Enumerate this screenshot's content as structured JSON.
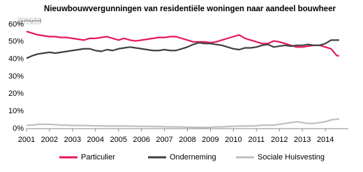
{
  "chart_data": {
    "type": "line",
    "title": "Nieuwbouwvergunningen van residentiële woningen naar aandeel bouwheer",
    "tooltip": "Grafiekgebied",
    "x": [
      2001,
      2001.25,
      2001.5,
      2001.75,
      2002,
      2002.25,
      2002.5,
      2002.75,
      2003,
      2003.25,
      2003.5,
      2003.75,
      2004,
      2004.25,
      2004.5,
      2004.75,
      2005,
      2005.25,
      2005.5,
      2005.75,
      2006,
      2006.25,
      2006.5,
      2006.75,
      2007,
      2007.25,
      2007.5,
      2007.75,
      2008,
      2008.25,
      2008.5,
      2008.75,
      2009,
      2009.25,
      2009.5,
      2009.75,
      2010,
      2010.25,
      2010.5,
      2010.75,
      2011,
      2011.25,
      2011.5,
      2011.75,
      2012,
      2012.25,
      2012.5,
      2012.75,
      2013,
      2013.25,
      2013.5,
      2013.75,
      2014,
      2014.25,
      2014.5,
      2014.6
    ],
    "series": [
      {
        "name": "Particulier",
        "color": "#e5175f",
        "values": [
          56,
          55,
          54,
          53.5,
          53,
          53,
          52.5,
          52.5,
          52,
          51.5,
          51,
          52,
          52,
          52.5,
          53,
          52,
          51,
          52,
          51,
          50.5,
          51,
          51.5,
          52,
          52.5,
          52.5,
          53,
          53,
          52,
          51,
          50,
          50,
          50,
          49.5,
          50,
          51,
          52,
          53,
          54,
          52,
          51,
          50,
          49,
          49,
          50.5,
          50,
          49,
          48,
          47,
          47,
          47.5,
          48,
          48,
          47,
          46,
          42,
          42
        ]
      },
      {
        "name": "Onderneming",
        "color": "#404040",
        "values": [
          40.5,
          42,
          43,
          43.5,
          44,
          43.5,
          44,
          44.5,
          45,
          45.5,
          46,
          46,
          45,
          44.5,
          45.5,
          45,
          46,
          46.5,
          47,
          46.5,
          46,
          45.5,
          45,
          45,
          45.5,
          45,
          45,
          46,
          47,
          48.5,
          49.5,
          49,
          49,
          48.5,
          48,
          47,
          46,
          45.5,
          46.5,
          46.5,
          47,
          48,
          48.5,
          47,
          47.5,
          48,
          47.5,
          48,
          48,
          48.5,
          48,
          48,
          49,
          51,
          51,
          51
        ]
      },
      {
        "name": "Sociale Huisvesting",
        "color": "#bfbfbf",
        "values": [
          2,
          2,
          2.5,
          2.5,
          2.5,
          2.3,
          2,
          2,
          1.8,
          1.8,
          1.8,
          1.7,
          1.6,
          1.6,
          1.5,
          1.5,
          1.5,
          1.5,
          1.4,
          1.4,
          1.3,
          1.3,
          1.2,
          1.2,
          1.1,
          1,
          1,
          1,
          0.8,
          0.8,
          0.7,
          0.7,
          0.8,
          1,
          1,
          1.2,
          1.3,
          1.5,
          1.5,
          1.5,
          1.6,
          2,
          2,
          2,
          2.5,
          3,
          3.5,
          4,
          3.5,
          3,
          3,
          3.5,
          4,
          5,
          5.5,
          5.5
        ]
      }
    ],
    "xlim": [
      2001,
      2015
    ],
    "xticks": [
      2001,
      2002,
      2003,
      2004,
      2005,
      2006,
      2007,
      2008,
      2009,
      2010,
      2011,
      2012,
      2013,
      2014
    ],
    "ylim": [
      0,
      60
    ],
    "yticks": [
      {
        "value": 0,
        "label": "0%"
      },
      {
        "value": 10,
        "label": "10%"
      },
      {
        "value": 20,
        "label": "20%"
      },
      {
        "value": 30,
        "label": "30%"
      },
      {
        "value": 40,
        "label": "40%"
      },
      {
        "value": 50,
        "label": "50%"
      },
      {
        "value": 60,
        "label": "60%"
      }
    ],
    "grid": false
  }
}
